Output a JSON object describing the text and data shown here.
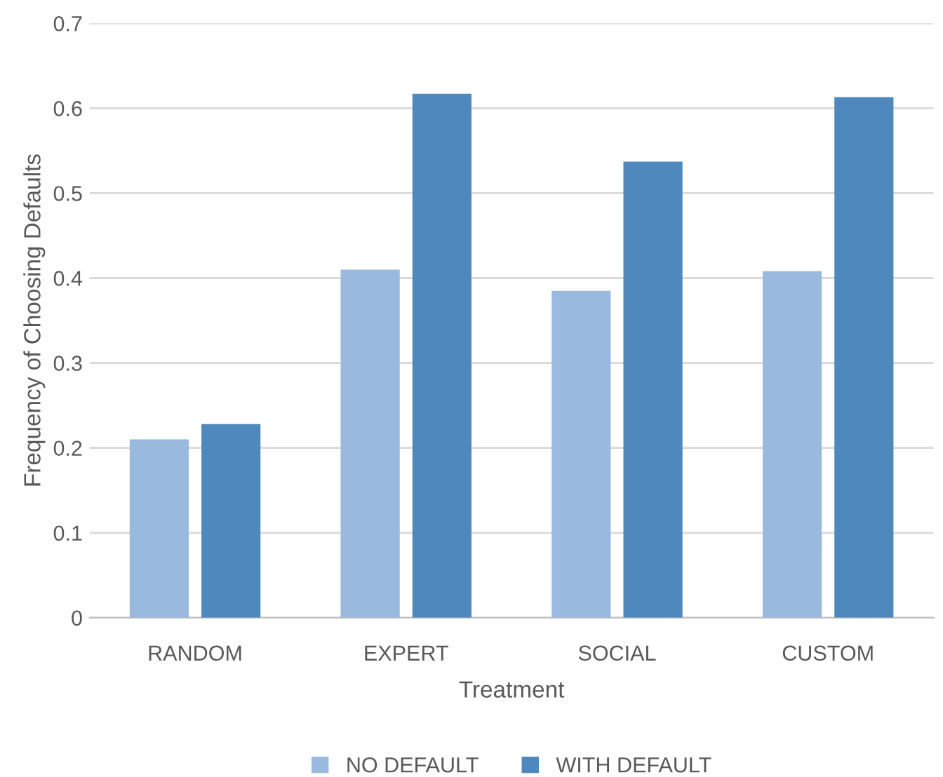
{
  "chart_data": {
    "type": "bar",
    "xlabel": "Treatment",
    "ylabel": "Frequency of Choosing Defaults",
    "categories": [
      "RANDOM",
      "EXPERT",
      "SOCIAL",
      "CUSTOM"
    ],
    "series": [
      {
        "name": "NO DEFAULT",
        "color": "#9ab9df",
        "values": [
          0.21,
          0.41,
          0.385,
          0.408
        ]
      },
      {
        "name": "WITH DEFAULT",
        "color": "#4f88bd",
        "values": [
          0.228,
          0.617,
          0.537,
          0.613
        ]
      }
    ],
    "ylim": [
      0,
      0.7
    ],
    "yticks": [
      0,
      0.1,
      0.2,
      0.3,
      0.4,
      0.5,
      0.6,
      0.7
    ],
    "grid": "y",
    "legend": "bottom"
  }
}
